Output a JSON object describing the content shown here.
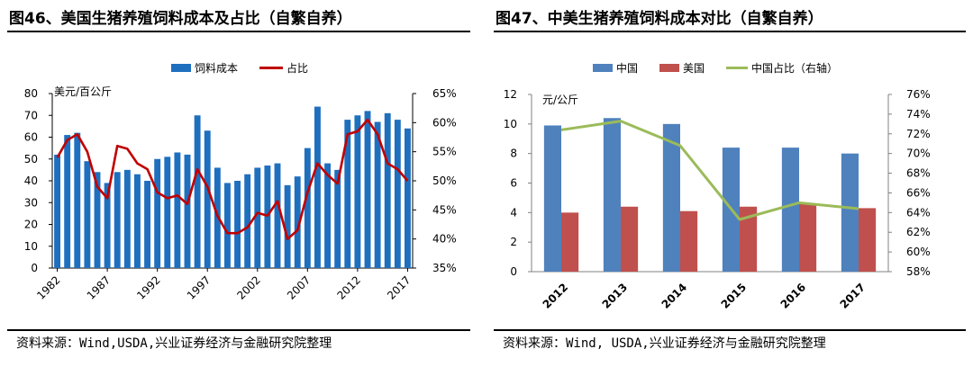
{
  "left": {
    "title": "图46、美国生猪养殖饲料成本及占比（自繁自养）",
    "source": "资料来源：Wind,USDA,兴业证券经济与金融研究院整理",
    "chart_data": {
      "type": "bar",
      "unit_label": "美元/百公斤",
      "years": [
        1982,
        1983,
        1984,
        1985,
        1986,
        1987,
        1988,
        1989,
        1990,
        1991,
        1992,
        1993,
        1994,
        1995,
        1996,
        1997,
        1998,
        1999,
        2000,
        2001,
        2002,
        2003,
        2004,
        2005,
        2006,
        2007,
        2008,
        2009,
        2010,
        2011,
        2012,
        2013,
        2014,
        2015,
        2016,
        2017
      ],
      "x_tick_labels": [
        "1982",
        "1987",
        "1992",
        "1997",
        "2002",
        "2007",
        "2012",
        "2017"
      ],
      "x_tick_years": [
        1982,
        1987,
        1992,
        1997,
        2002,
        2007,
        2012,
        2017
      ],
      "series": [
        {
          "name": "饲料成本",
          "color": "#1f6fbf",
          "axis": "left",
          "values": [
            52,
            61,
            62,
            49,
            44,
            39,
            44,
            45,
            43,
            40,
            50,
            51,
            53,
            52,
            70,
            63,
            46,
            39,
            40,
            43,
            46,
            47,
            48,
            38,
            42,
            55,
            74,
            48,
            45,
            68,
            70,
            72,
            67,
            71,
            68,
            64
          ]
        },
        {
          "name": "占比",
          "color": "#c00000",
          "axis": "right",
          "values": [
            54,
            57,
            58,
            55,
            49,
            47,
            56,
            55.5,
            53,
            52,
            48,
            47,
            47.5,
            46,
            52,
            49,
            44,
            41,
            41,
            42,
            44.5,
            44,
            46.5,
            40,
            41.5,
            48,
            53,
            51,
            49.5,
            58,
            58.5,
            60.5,
            58,
            53,
            52,
            50
          ]
        }
      ],
      "y_left": {
        "min": 0,
        "max": 80,
        "ticks": [
          0,
          10,
          20,
          30,
          40,
          50,
          60,
          70,
          80
        ]
      },
      "y_right": {
        "min": 35,
        "max": 65,
        "ticks": [
          "35%",
          "40%",
          "45%",
          "50%",
          "55%",
          "60%",
          "65%"
        ]
      },
      "legend": "top"
    }
  },
  "right": {
    "title": "图47、中美生猪养殖饲料成本对比（自繁自养）",
    "source": "资料来源：Wind, USDA,兴业证券经济与金融研究院整理",
    "chart_data": {
      "type": "bar",
      "unit_label": "元/公斤",
      "categories": [
        "2012",
        "2013",
        "2014",
        "2015",
        "2016",
        "2017"
      ],
      "series": [
        {
          "name": "中国",
          "color": "#4f81bd",
          "axis": "left",
          "values": [
            9.9,
            10.4,
            10.0,
            8.4,
            8.4,
            8.0
          ]
        },
        {
          "name": "美国",
          "color": "#c0504d",
          "axis": "left",
          "values": [
            4.0,
            4.4,
            4.1,
            4.4,
            4.6,
            4.3
          ]
        },
        {
          "name": "中国占比（右轴）",
          "color": "#9bbb59",
          "axis": "right",
          "values": [
            72.4,
            73.3,
            70.8,
            63.3,
            65.0,
            64.4
          ]
        }
      ],
      "y_left": {
        "min": 0,
        "max": 12,
        "ticks": [
          0,
          2,
          4,
          6,
          8,
          10,
          12
        ]
      },
      "y_right": {
        "min": 58,
        "max": 76,
        "ticks": [
          "58%",
          "60%",
          "62%",
          "64%",
          "66%",
          "68%",
          "70%",
          "72%",
          "74%",
          "76%"
        ]
      },
      "legend": "top"
    }
  }
}
